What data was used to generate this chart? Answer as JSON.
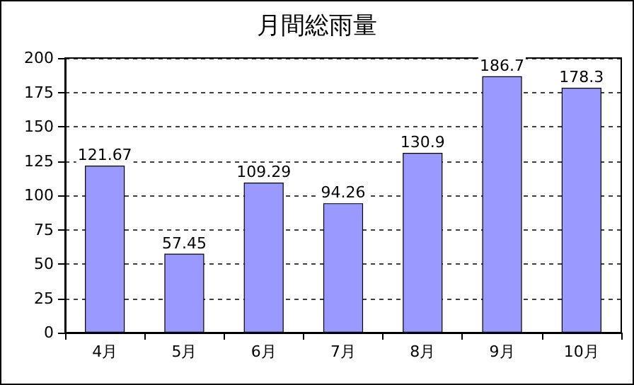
{
  "chart_data": {
    "type": "bar",
    "title": "月間総雨量",
    "categories": [
      "4月",
      "5月",
      "6月",
      "7月",
      "8月",
      "9月",
      "10月"
    ],
    "values": [
      121.67,
      57.45,
      109.29,
      94.26,
      130.9,
      186.7,
      178.3
    ],
    "color": "#9999ff",
    "ylim": [
      0,
      200
    ],
    "yticks": [
      0,
      25,
      50,
      75,
      100,
      125,
      150,
      175,
      200
    ],
    "grid": "y",
    "data_labels": true
  }
}
